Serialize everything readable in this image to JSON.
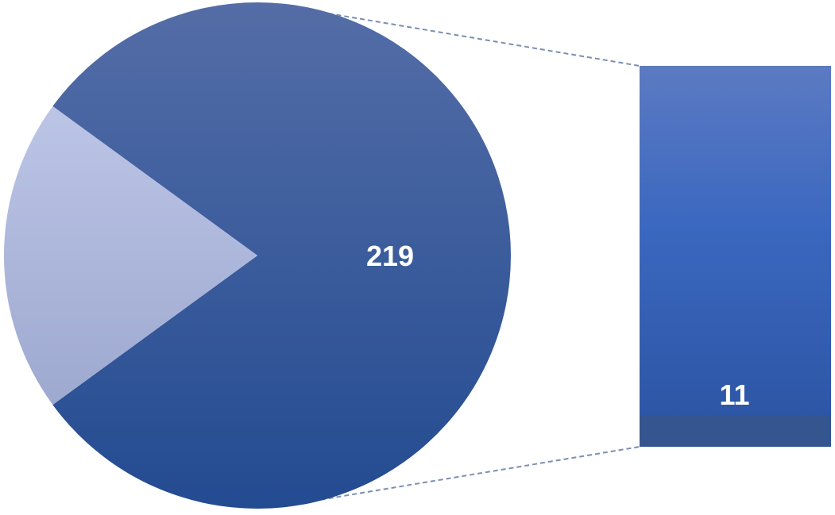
{
  "chart_data": {
    "type": "pie",
    "subtype": "bar-of-pie",
    "pie_slices": [
      {
        "value": 219,
        "label": "219",
        "color": "#2f55a0"
      },
      {
        "value": 55,
        "label": "",
        "color": "#adb9df"
      }
    ],
    "bar_segments": [
      {
        "value": 11,
        "label": "11",
        "color": "#3a66bf"
      },
      {
        "value": 1,
        "label": "",
        "color": "#34558f"
      }
    ],
    "colors": {
      "pie_main_top": "#546da7",
      "pie_main_bottom": "#234b91",
      "pie_small_top": "#bcc5e6",
      "pie_small_bottom": "#9ea9d0",
      "bar_top": "#5c7ac2",
      "bar_mid": "#3b68c0",
      "bar_bottom": "#2d56a6",
      "connector": "#7b8fb3"
    },
    "grid": false,
    "legend": "none",
    "title": ""
  }
}
